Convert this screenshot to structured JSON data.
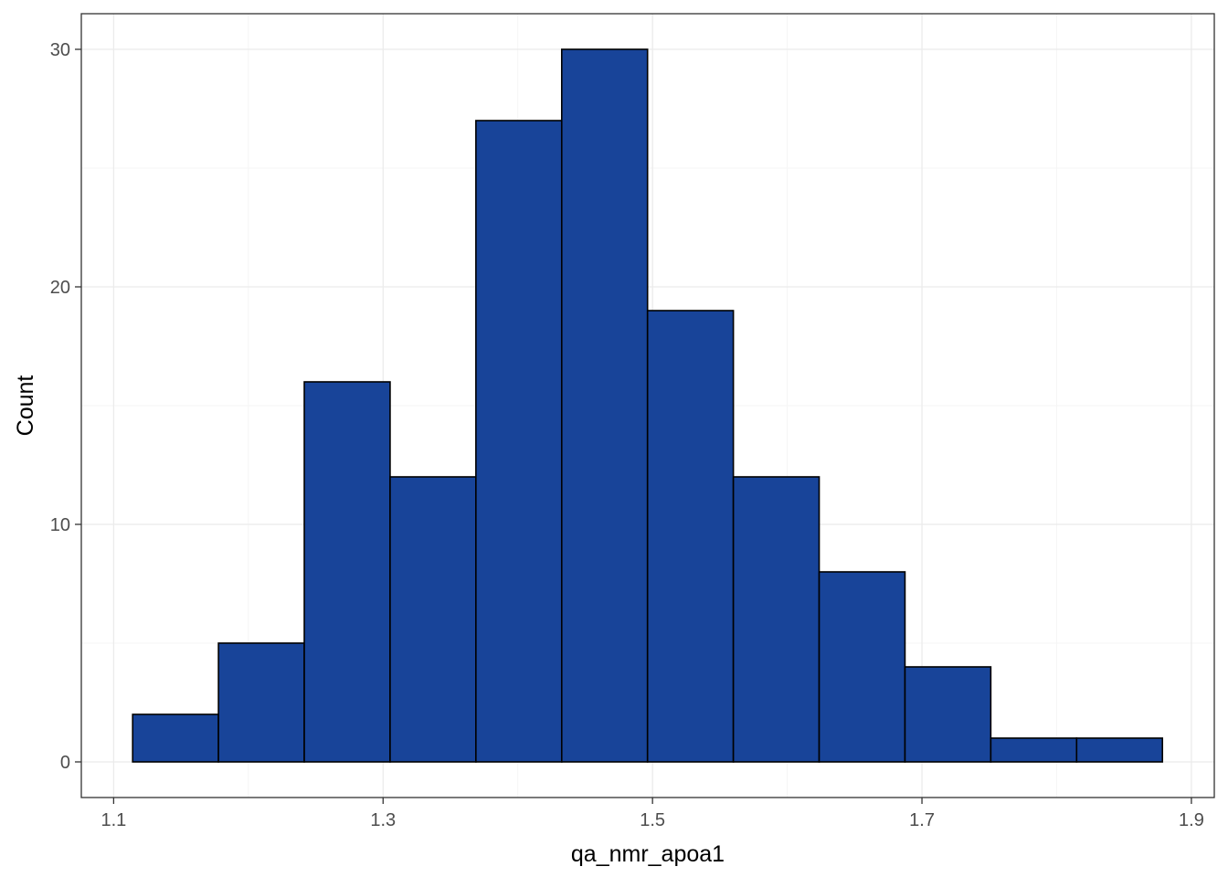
{
  "chart_data": {
    "type": "bar",
    "subtype": "histogram",
    "title": "",
    "xlabel": "qa_nmr_apoa1",
    "ylabel": "Count",
    "bins": [
      {
        "x0": 1.1141,
        "x1": 1.1778,
        "count": 2
      },
      {
        "x0": 1.1778,
        "x1": 1.2415,
        "count": 5
      },
      {
        "x0": 1.2415,
        "x1": 1.3052,
        "count": 16
      },
      {
        "x0": 1.3052,
        "x1": 1.3689,
        "count": 12
      },
      {
        "x0": 1.3689,
        "x1": 1.4326,
        "count": 27
      },
      {
        "x0": 1.4326,
        "x1": 1.4963,
        "count": 30
      },
      {
        "x0": 1.4963,
        "x1": 1.56,
        "count": 19
      },
      {
        "x0": 1.56,
        "x1": 1.6237,
        "count": 12
      },
      {
        "x0": 1.6237,
        "x1": 1.6874,
        "count": 8
      },
      {
        "x0": 1.6874,
        "x1": 1.7511,
        "count": 4
      },
      {
        "x0": 1.7511,
        "x1": 1.8148,
        "count": 1
      },
      {
        "x0": 1.8148,
        "x1": 1.8785,
        "count": 1
      }
    ],
    "xlim": [
      1.076,
      1.917
    ],
    "ylim": [
      -1.5,
      31.5
    ],
    "x_ticks": [
      {
        "value": 1.1,
        "label": "1.1"
      },
      {
        "value": 1.3,
        "label": "1.3"
      },
      {
        "value": 1.5,
        "label": "1.5"
      },
      {
        "value": 1.7,
        "label": "1.7"
      },
      {
        "value": 1.9,
        "label": "1.9"
      }
    ],
    "x_minor_ticks": [
      1.2,
      1.4,
      1.6,
      1.8
    ],
    "y_ticks": [
      {
        "value": 0,
        "label": "0"
      },
      {
        "value": 10,
        "label": "10"
      },
      {
        "value": 20,
        "label": "20"
      },
      {
        "value": 30,
        "label": "30"
      }
    ],
    "y_minor_ticks": [
      5,
      15,
      25
    ],
    "grid": true,
    "legend": "none",
    "colors": {
      "bar_fill": "#184499",
      "bar_stroke": "#000000",
      "grid_major": "#ebebeb",
      "grid_minor": "#f5f5f5",
      "panel_border": "#333333",
      "tick_label": "#4d4d4d"
    }
  }
}
